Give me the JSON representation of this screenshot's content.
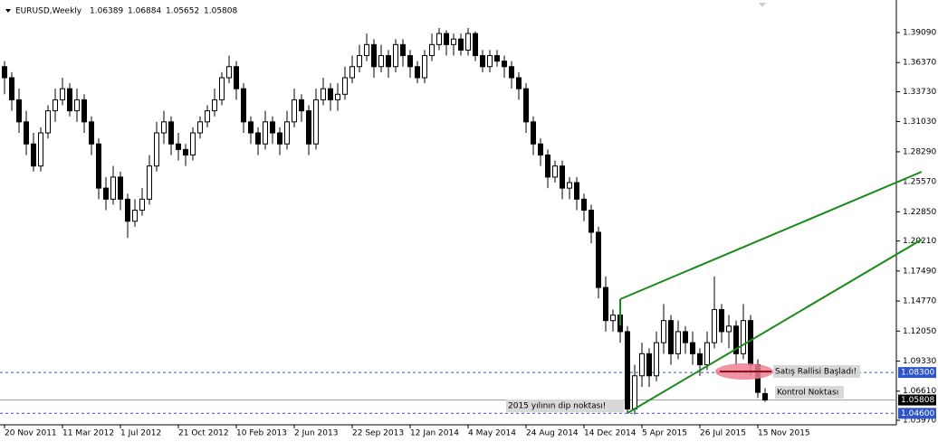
{
  "chart_data": {
    "type": "candlestick",
    "symbol": "EURUSD,Weekly",
    "ylim": [
      1.0356,
      1.4171
    ],
    "xlim": [
      -0.625,
      123.125
    ],
    "yticks": [
      {
        "value": 1.3909,
        "label": "1.39090"
      },
      {
        "value": 1.3637,
        "label": "1.36370"
      },
      {
        "value": 1.3373,
        "label": "1.33730"
      },
      {
        "value": 1.3103,
        "label": "1.31030"
      },
      {
        "value": 1.2829,
        "label": "1.28290"
      },
      {
        "value": 1.2557,
        "label": "1.25570"
      },
      {
        "value": 1.2285,
        "label": "1.22850"
      },
      {
        "value": 1.2021,
        "label": "1.20210"
      },
      {
        "value": 1.1749,
        "label": "1.17490"
      },
      {
        "value": 1.1477,
        "label": "1.14770"
      },
      {
        "value": 1.1205,
        "label": "1.12050"
      },
      {
        "value": 1.0933,
        "label": "1.09330"
      },
      {
        "value": 1.0661,
        "label": "1.06610"
      },
      {
        "value": 1.0397,
        "label": "1.03970"
      }
    ],
    "xticks": [
      {
        "value": 0,
        "label": "20 Nov 2011"
      },
      {
        "value": 8,
        "label": "11 Mar 2012"
      },
      {
        "value": 16,
        "label": "1 Jul 2012"
      },
      {
        "value": 24,
        "label": "21 Oct 2012"
      },
      {
        "value": 32,
        "label": "10 Feb 2013"
      },
      {
        "value": 40,
        "label": "2 Jun 2013"
      },
      {
        "value": 48,
        "label": "22 Sep 2013"
      },
      {
        "value": 56,
        "label": "12 Jan 2014"
      },
      {
        "value": 64,
        "label": "4 May 2014"
      },
      {
        "value": 72,
        "label": "24 Aug 2014"
      },
      {
        "value": 80,
        "label": "14 Dec 2014"
      },
      {
        "value": 88,
        "label": "5 Apr 2015"
      },
      {
        "value": 96,
        "label": "26 Jul 2015"
      },
      {
        "value": 104,
        "label": "15 Nov 2015"
      }
    ],
    "hlines": [
      {
        "value": 1.083,
        "label": "1.08300",
        "color": "#2f55c8",
        "style": "dashed"
      },
      {
        "value": 1.046,
        "label": "1.04600",
        "color": "#2f55c8",
        "style": "dashed"
      },
      {
        "value": 1.05808,
        "label": "1.05808",
        "color": "#000000",
        "style": "solid"
      }
    ],
    "annotations": [
      "Satış Rallisi Başladı!",
      "Kontrol Noktası",
      "2015 yılının dip noktası!"
    ],
    "candles": [
      [
        1.36,
        1.365,
        1.335,
        1.35
      ],
      [
        1.35,
        1.355,
        1.32,
        1.33
      ],
      [
        1.33,
        1.34,
        1.3,
        1.31
      ],
      [
        1.31,
        1.32,
        1.28,
        1.29
      ],
      [
        1.29,
        1.3,
        1.265,
        1.27
      ],
      [
        1.27,
        1.305,
        1.265,
        1.3
      ],
      [
        1.3,
        1.325,
        1.295,
        1.32
      ],
      [
        1.32,
        1.34,
        1.31,
        1.33
      ],
      [
        1.33,
        1.35,
        1.325,
        1.34
      ],
      [
        1.34,
        1.345,
        1.315,
        1.32
      ],
      [
        1.32,
        1.34,
        1.31,
        1.33
      ],
      [
        1.33,
        1.335,
        1.3,
        1.31
      ],
      [
        1.31,
        1.315,
        1.28,
        1.29
      ],
      [
        1.29,
        1.295,
        1.24,
        1.25
      ],
      [
        1.25,
        1.26,
        1.23,
        1.24
      ],
      [
        1.24,
        1.27,
        1.235,
        1.26
      ],
      [
        1.26,
        1.265,
        1.23,
        1.24
      ],
      [
        1.24,
        1.245,
        1.205,
        1.22
      ],
      [
        1.22,
        1.24,
        1.215,
        1.23
      ],
      [
        1.23,
        1.25,
        1.225,
        1.24
      ],
      [
        1.24,
        1.28,
        1.235,
        1.27
      ],
      [
        1.27,
        1.31,
        1.265,
        1.3
      ],
      [
        1.3,
        1.32,
        1.29,
        1.31
      ],
      [
        1.31,
        1.315,
        1.28,
        1.29
      ],
      [
        1.29,
        1.3,
        1.275,
        1.285
      ],
      [
        1.285,
        1.29,
        1.27,
        1.28
      ],
      [
        1.28,
        1.305,
        1.275,
        1.3
      ],
      [
        1.3,
        1.315,
        1.295,
        1.31
      ],
      [
        1.31,
        1.325,
        1.305,
        1.32
      ],
      [
        1.32,
        1.34,
        1.315,
        1.33
      ],
      [
        1.33,
        1.355,
        1.325,
        1.35
      ],
      [
        1.35,
        1.37,
        1.345,
        1.36
      ],
      [
        1.36,
        1.365,
        1.33,
        1.34
      ],
      [
        1.34,
        1.345,
        1.3,
        1.31
      ],
      [
        1.31,
        1.315,
        1.29,
        1.3
      ],
      [
        1.3,
        1.305,
        1.28,
        1.29
      ],
      [
        1.29,
        1.32,
        1.285,
        1.31
      ],
      [
        1.31,
        1.315,
        1.29,
        1.3
      ],
      [
        1.3,
        1.305,
        1.28,
        1.29
      ],
      [
        1.29,
        1.32,
        1.285,
        1.31
      ],
      [
        1.31,
        1.34,
        1.305,
        1.33
      ],
      [
        1.33,
        1.335,
        1.31,
        1.32
      ],
      [
        1.32,
        1.325,
        1.28,
        1.29
      ],
      [
        1.29,
        1.34,
        1.285,
        1.33
      ],
      [
        1.33,
        1.35,
        1.325,
        1.34
      ],
      [
        1.34,
        1.345,
        1.32,
        1.33
      ],
      [
        1.33,
        1.345,
        1.32,
        1.335
      ],
      [
        1.335,
        1.36,
        1.33,
        1.35
      ],
      [
        1.35,
        1.37,
        1.345,
        1.36
      ],
      [
        1.36,
        1.38,
        1.355,
        1.37
      ],
      [
        1.37,
        1.39,
        1.365,
        1.38
      ],
      [
        1.38,
        1.385,
        1.35,
        1.36
      ],
      [
        1.36,
        1.38,
        1.355,
        1.37
      ],
      [
        1.37,
        1.375,
        1.35,
        1.36
      ],
      [
        1.36,
        1.385,
        1.355,
        1.38
      ],
      [
        1.38,
        1.385,
        1.36,
        1.37
      ],
      [
        1.37,
        1.375,
        1.35,
        1.36
      ],
      [
        1.36,
        1.365,
        1.345,
        1.35
      ],
      [
        1.35,
        1.375,
        1.345,
        1.37
      ],
      [
        1.37,
        1.39,
        1.365,
        1.38
      ],
      [
        1.38,
        1.395,
        1.375,
        1.39
      ],
      [
        1.39,
        1.393,
        1.37,
        1.38
      ],
      [
        1.38,
        1.39,
        1.37,
        1.385
      ],
      [
        1.385,
        1.39,
        1.37,
        1.375
      ],
      [
        1.375,
        1.395,
        1.37,
        1.39
      ],
      [
        1.39,
        1.392,
        1.365,
        1.37
      ],
      [
        1.37,
        1.375,
        1.355,
        1.36
      ],
      [
        1.36,
        1.375,
        1.355,
        1.37
      ],
      [
        1.37,
        1.375,
        1.36,
        1.365
      ],
      [
        1.365,
        1.37,
        1.35,
        1.36
      ],
      [
        1.36,
        1.365,
        1.34,
        1.35
      ],
      [
        1.35,
        1.355,
        1.33,
        1.34
      ],
      [
        1.34,
        1.345,
        1.3,
        1.31
      ],
      [
        1.31,
        1.315,
        1.28,
        1.29
      ],
      [
        1.29,
        1.295,
        1.27,
        1.28
      ],
      [
        1.28,
        1.285,
        1.25,
        1.26
      ],
      [
        1.26,
        1.275,
        1.255,
        1.27
      ],
      [
        1.27,
        1.275,
        1.24,
        1.25
      ],
      [
        1.25,
        1.26,
        1.24,
        1.255
      ],
      [
        1.255,
        1.26,
        1.23,
        1.24
      ],
      [
        1.24,
        1.245,
        1.22,
        1.23
      ],
      [
        1.23,
        1.235,
        1.2,
        1.21
      ],
      [
        1.21,
        1.215,
        1.15,
        1.16
      ],
      [
        1.16,
        1.17,
        1.12,
        1.13
      ],
      [
        1.13,
        1.14,
        1.12,
        1.135
      ],
      [
        1.135,
        1.14,
        1.11,
        1.12
      ],
      [
        1.12,
        1.125,
        1.046,
        1.05
      ],
      [
        1.05,
        1.09,
        1.045,
        1.08
      ],
      [
        1.08,
        1.11,
        1.07,
        1.1
      ],
      [
        1.1,
        1.105,
        1.07,
        1.08
      ],
      [
        1.08,
        1.12,
        1.075,
        1.11
      ],
      [
        1.11,
        1.145,
        1.1,
        1.13
      ],
      [
        1.13,
        1.135,
        1.09,
        1.1
      ],
      [
        1.1,
        1.13,
        1.095,
        1.12
      ],
      [
        1.12,
        1.125,
        1.1,
        1.11
      ],
      [
        1.11,
        1.12,
        1.09,
        1.1
      ],
      [
        1.1,
        1.105,
        1.08,
        1.09
      ],
      [
        1.09,
        1.12,
        1.085,
        1.11
      ],
      [
        1.11,
        1.17,
        1.105,
        1.14
      ],
      [
        1.14,
        1.145,
        1.11,
        1.12
      ],
      [
        1.12,
        1.135,
        1.105,
        1.125
      ],
      [
        1.125,
        1.13,
        1.09,
        1.1
      ],
      [
        1.1,
        1.145,
        1.095,
        1.13
      ],
      [
        1.13,
        1.135,
        1.08,
        1.09
      ],
      [
        1.09,
        1.095,
        1.06,
        1.065
      ],
      [
        1.06389,
        1.06884,
        1.05652,
        1.05808
      ]
    ]
  }
}
